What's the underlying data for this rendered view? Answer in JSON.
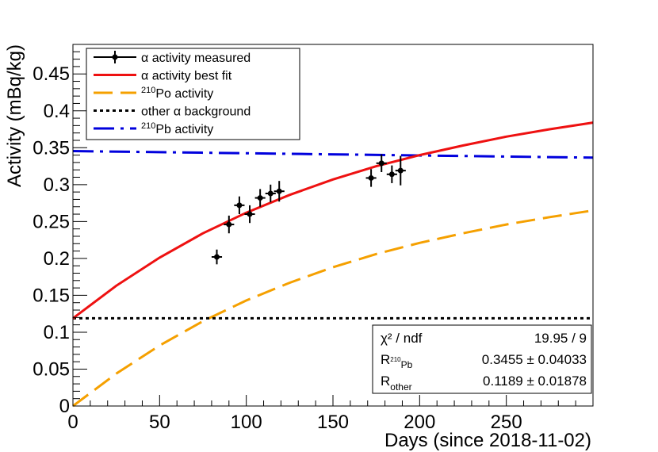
{
  "chart_data": {
    "type": "scatter",
    "title": "",
    "xlabel": "Days (since 2018-11-02)",
    "ylabel": "Activity (mBq/kg)",
    "xlim": [
      0,
      300
    ],
    "ylim": [
      0,
      0.49
    ],
    "x_ticks": [
      0,
      50,
      100,
      150,
      200,
      250
    ],
    "x_tick_labels": [
      "0",
      "50",
      "100",
      "150",
      "200",
      "250"
    ],
    "y_ticks": [
      0,
      0.05,
      0.1,
      0.15,
      0.2,
      0.25,
      0.3,
      0.35,
      0.4,
      0.45
    ],
    "y_tick_labels": [
      "0",
      "0.05",
      "0.1",
      "0.15",
      "0.2",
      "0.25",
      "0.3",
      "0.35",
      "0.4",
      "0.45"
    ],
    "grid": false,
    "legend_position": "top-left",
    "legend": [
      {
        "label": "α activity measured",
        "kind": "points",
        "color": "#000000"
      },
      {
        "label": " α activity best fit",
        "kind": "solid",
        "color": "#ee1111"
      },
      {
        "label_sup": "210",
        "label": "Po activity",
        "kind": "dashed",
        "color": "#f5a000"
      },
      {
        "label": "other α background",
        "kind": "dotted",
        "color": "#000000"
      },
      {
        "label_sup": "210",
        "label": "Pb activity",
        "kind": "dashdot",
        "color": "#0000dd"
      }
    ],
    "measured": [
      {
        "x": 83,
        "y": 0.202,
        "xerr": 3,
        "yerr": 0.01
      },
      {
        "x": 90,
        "y": 0.246,
        "xerr": 3,
        "yerr": 0.012
      },
      {
        "x": 96,
        "y": 0.272,
        "xerr": 3,
        "yerr": 0.012
      },
      {
        "x": 102,
        "y": 0.26,
        "xerr": 3,
        "yerr": 0.012
      },
      {
        "x": 108,
        "y": 0.282,
        "xerr": 3,
        "yerr": 0.012
      },
      {
        "x": 114,
        "y": 0.288,
        "xerr": 3,
        "yerr": 0.012
      },
      {
        "x": 119,
        "y": 0.291,
        "xerr": 3,
        "yerr": 0.014
      },
      {
        "x": 172,
        "y": 0.309,
        "xerr": 3,
        "yerr": 0.012
      },
      {
        "x": 178,
        "y": 0.329,
        "xerr": 3,
        "yerr": 0.012
      },
      {
        "x": 184,
        "y": 0.314,
        "xerr": 3,
        "yerr": 0.012
      },
      {
        "x": 189,
        "y": 0.319,
        "xerr": 3,
        "yerr": 0.02
      }
    ],
    "series": [
      {
        "name": "α activity best fit",
        "color": "#ee1111",
        "x": [
          0,
          25,
          50,
          75,
          100,
          125,
          150,
          175,
          200,
          225,
          250,
          275,
          300
        ],
        "values": [
          0.1189,
          0.163,
          0.201,
          0.234,
          0.262,
          0.286,
          0.307,
          0.325,
          0.34,
          0.353,
          0.365,
          0.375,
          0.384
        ]
      },
      {
        "name": "210Po activity",
        "color": "#f5a000",
        "x": [
          0,
          25,
          50,
          75,
          100,
          125,
          150,
          175,
          200,
          225,
          250,
          275,
          300
        ],
        "values": [
          0.0,
          0.044,
          0.082,
          0.115,
          0.143,
          0.167,
          0.188,
          0.206,
          0.221,
          0.234,
          0.246,
          0.256,
          0.265
        ]
      },
      {
        "name": "other α background",
        "color": "#000000",
        "x": [
          0,
          300
        ],
        "values": [
          0.1189,
          0.1189
        ]
      },
      {
        "name": "210Pb activity",
        "color": "#0000dd",
        "x": [
          0,
          300
        ],
        "values": [
          0.3455,
          0.3365
        ]
      }
    ],
    "stats": {
      "chi2_label": "χ² / ndf",
      "chi2_value": "19.95 / 9",
      "rows": [
        {
          "label": "R",
          "sub_sup": "210",
          "sub": "Pb",
          "value": "0.3455 ± 0.04033"
        },
        {
          "label": "R",
          "sub_sup": "",
          "sub": "other",
          "value": "0.1189 ± 0.01878"
        }
      ]
    }
  }
}
